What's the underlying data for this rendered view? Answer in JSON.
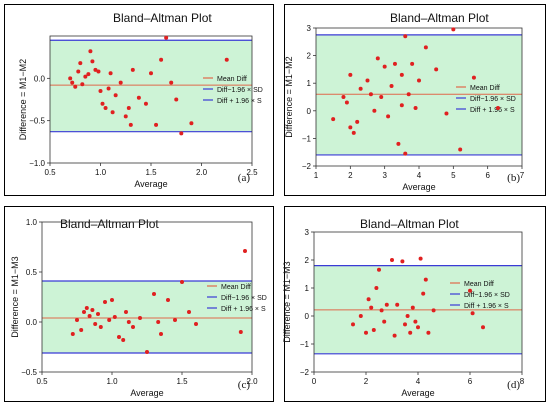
{
  "chart_data": [
    {
      "type": "scatter",
      "panel_label": "(a)",
      "title": "Bland–Altman Plot",
      "xlabel": "Average",
      "ylabel": "Difference = M1−M2",
      "xlim": [
        0.5,
        2.5
      ],
      "ylim": [
        -1.0,
        0.5
      ],
      "xticks": [
        0.5,
        1.0,
        1.5,
        2.0,
        2.5
      ],
      "xtick_labels": [
        "0.5",
        "1.0",
        "1.5",
        "2.0",
        "2.5"
      ],
      "yticks": [
        -1.0,
        -0.5,
        0.0
      ],
      "ytick_labels": [
        "−1.0",
        "−0.5",
        "0.0"
      ],
      "mean_diff": -0.08,
      "lower_loa": -0.63,
      "upper_loa": 0.45,
      "legend": [
        "Mean Diff",
        "Diff−1.96 × SD",
        "Diff + 1.96 × S"
      ],
      "legend_position": "right",
      "points": [
        [
          0.7,
          0.0
        ],
        [
          0.72,
          -0.05
        ],
        [
          0.75,
          -0.1
        ],
        [
          0.78,
          0.08
        ],
        [
          0.8,
          0.18
        ],
        [
          0.82,
          -0.07
        ],
        [
          0.85,
          0.02
        ],
        [
          0.88,
          0.05
        ],
        [
          0.9,
          0.32
        ],
        [
          0.92,
          0.2
        ],
        [
          0.95,
          0.1
        ],
        [
          0.98,
          0.08
        ],
        [
          1.0,
          -0.15
        ],
        [
          1.02,
          -0.3
        ],
        [
          1.05,
          -0.35
        ],
        [
          1.08,
          -0.12
        ],
        [
          1.1,
          0.06
        ],
        [
          1.12,
          -0.4
        ],
        [
          1.15,
          -0.2
        ],
        [
          1.2,
          -0.05
        ],
        [
          1.25,
          -0.45
        ],
        [
          1.28,
          -0.35
        ],
        [
          1.3,
          -0.55
        ],
        [
          1.32,
          0.1
        ],
        [
          1.38,
          -0.23
        ],
        [
          1.45,
          -0.3
        ],
        [
          1.5,
          0.06
        ],
        [
          1.55,
          -0.55
        ],
        [
          1.6,
          0.22
        ],
        [
          1.65,
          0.48
        ],
        [
          1.7,
          -0.05
        ],
        [
          1.75,
          -0.25
        ],
        [
          1.8,
          -0.65
        ],
        [
          1.9,
          -0.53
        ],
        [
          2.25,
          0.22
        ]
      ]
    },
    {
      "type": "scatter",
      "panel_label": "(b)",
      "title": "Bland–Altman Plot",
      "xlabel": "Average",
      "ylabel": "Difference = M1−M2",
      "xlim": [
        1,
        7
      ],
      "ylim": [
        -2,
        3
      ],
      "xticks": [
        1,
        2,
        3,
        4,
        5,
        6,
        7
      ],
      "xtick_labels": [
        "1",
        "2",
        "3",
        "4",
        "5",
        "6",
        "7"
      ],
      "yticks": [
        -2,
        -1,
        0,
        1,
        2,
        3
      ],
      "ytick_labels": [
        "−2",
        "−1",
        "0",
        "1",
        "2",
        "3"
      ],
      "mean_diff": 0.6,
      "lower_loa": -1.6,
      "upper_loa": 2.75,
      "legend": [
        "Mean Diff",
        "Diff−1.96 × SD",
        "Diff + 1.96 × S"
      ],
      "legend_position": "right",
      "points": [
        [
          1.5,
          -0.3
        ],
        [
          1.8,
          0.5
        ],
        [
          1.9,
          0.3
        ],
        [
          2.0,
          -0.6
        ],
        [
          2.0,
          1.3
        ],
        [
          2.1,
          -0.8
        ],
        [
          2.2,
          -0.4
        ],
        [
          2.3,
          0.8
        ],
        [
          2.5,
          1.1
        ],
        [
          2.6,
          0.6
        ],
        [
          2.7,
          0.0
        ],
        [
          2.8,
          1.9
        ],
        [
          2.9,
          0.5
        ],
        [
          3.0,
          1.6
        ],
        [
          3.1,
          -0.2
        ],
        [
          3.2,
          0.9
        ],
        [
          3.3,
          1.7
        ],
        [
          3.4,
          -1.2
        ],
        [
          3.5,
          0.2
        ],
        [
          3.5,
          1.3
        ],
        [
          3.6,
          2.7
        ],
        [
          3.7,
          0.6
        ],
        [
          3.8,
          1.7
        ],
        [
          3.9,
          0.1
        ],
        [
          4.0,
          1.1
        ],
        [
          4.2,
          2.3
        ],
        [
          4.5,
          1.5
        ],
        [
          4.8,
          -0.1
        ],
        [
          5.0,
          2.95
        ],
        [
          5.2,
          -1.4
        ],
        [
          5.6,
          1.2
        ],
        [
          6.3,
          0.1
        ],
        [
          3.6,
          -1.55
        ]
      ]
    },
    {
      "type": "scatter",
      "panel_label": "(c)",
      "title": "Bland–Altman Plot",
      "xlabel": "Average",
      "ylabel": "Difference = M1−M3",
      "xlim": [
        0.5,
        2.0
      ],
      "ylim": [
        -0.5,
        1.0
      ],
      "xticks": [
        0.5,
        1.0,
        1.5,
        2.0
      ],
      "xtick_labels": [
        "0.5",
        "1.0",
        "1.5",
        "2.0"
      ],
      "yticks": [
        -0.5,
        0.0,
        0.5,
        1.0
      ],
      "ytick_labels": [
        "−0.5",
        "0.0",
        "0.5",
        "1.0"
      ],
      "mean_diff": 0.04,
      "lower_loa": -0.31,
      "upper_loa": 0.41,
      "legend": [
        "Mean Diff",
        "Diff−1.96 × SD",
        "Diff + 1.96 × S"
      ],
      "legend_position": "right",
      "points": [
        [
          0.72,
          -0.12
        ],
        [
          0.75,
          0.02
        ],
        [
          0.78,
          -0.08
        ],
        [
          0.8,
          0.1
        ],
        [
          0.82,
          0.14
        ],
        [
          0.84,
          0.06
        ],
        [
          0.86,
          0.12
        ],
        [
          0.88,
          -0.02
        ],
        [
          0.9,
          0.08
        ],
        [
          0.92,
          -0.05
        ],
        [
          0.95,
          0.2
        ],
        [
          0.98,
          0.02
        ],
        [
          1.0,
          0.22
        ],
        [
          1.02,
          0.05
        ],
        [
          1.05,
          -0.15
        ],
        [
          1.08,
          -0.18
        ],
        [
          1.1,
          0.1
        ],
        [
          1.12,
          0.0
        ],
        [
          1.15,
          -0.05
        ],
        [
          1.2,
          0.04
        ],
        [
          1.25,
          -0.3
        ],
        [
          1.3,
          0.28
        ],
        [
          1.33,
          0.0
        ],
        [
          1.35,
          -0.12
        ],
        [
          1.4,
          0.22
        ],
        [
          1.45,
          0.02
        ],
        [
          1.5,
          0.4
        ],
        [
          1.55,
          0.1
        ],
        [
          1.6,
          -0.02
        ],
        [
          1.95,
          0.71
        ],
        [
          1.92,
          -0.1
        ]
      ]
    },
    {
      "type": "scatter",
      "panel_label": "(d)",
      "title": "Bland–Altman Plot",
      "xlabel": "Average",
      "ylabel": "Difference = M1−M3",
      "xlim": [
        0,
        8
      ],
      "ylim": [
        -2,
        3
      ],
      "xticks": [
        0,
        2,
        4,
        6,
        8
      ],
      "xtick_labels": [
        "0",
        "2",
        "4",
        "6",
        "8"
      ],
      "yticks": [
        -2,
        -1,
        0,
        1,
        2,
        3
      ],
      "ytick_labels": [
        "−2",
        "−1",
        "0",
        "1",
        "2",
        "3"
      ],
      "mean_diff": 0.22,
      "lower_loa": -1.35,
      "upper_loa": 1.8,
      "legend": [
        "Mean Diff",
        "Diff−1.96 × SD",
        "Diff + 1.96 × S"
      ],
      "legend_position": "right",
      "points": [
        [
          1.5,
          -0.3
        ],
        [
          1.8,
          0.0
        ],
        [
          2.0,
          -0.6
        ],
        [
          2.1,
          0.6
        ],
        [
          2.2,
          0.3
        ],
        [
          2.3,
          -0.5
        ],
        [
          2.4,
          1.0
        ],
        [
          2.5,
          1.65
        ],
        [
          2.6,
          0.2
        ],
        [
          2.7,
          -0.2
        ],
        [
          2.8,
          0.4
        ],
        [
          3.0,
          2.0
        ],
        [
          3.1,
          -0.7
        ],
        [
          3.2,
          0.4
        ],
        [
          3.4,
          1.95
        ],
        [
          3.5,
          -0.3
        ],
        [
          3.6,
          0.0
        ],
        [
          3.7,
          -0.6
        ],
        [
          3.8,
          0.3
        ],
        [
          4.0,
          -0.4
        ],
        [
          4.1,
          2.05
        ],
        [
          4.2,
          0.8
        ],
        [
          4.3,
          1.3
        ],
        [
          4.4,
          -0.6
        ],
        [
          4.6,
          0.2
        ],
        [
          6.0,
          0.9
        ],
        [
          6.1,
          0.1
        ],
        [
          6.5,
          -0.4
        ],
        [
          3.9,
          -0.2
        ]
      ]
    }
  ]
}
